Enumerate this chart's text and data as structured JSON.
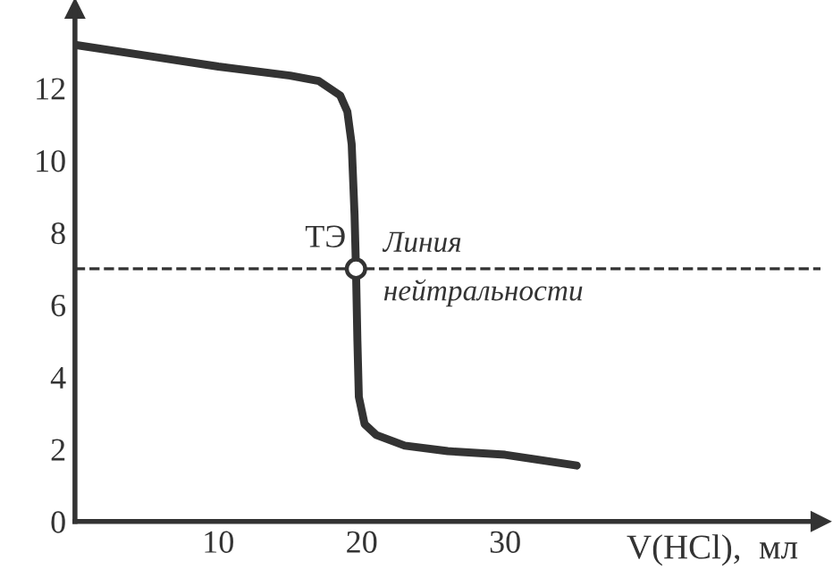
{
  "chart_data": {
    "type": "line",
    "xlabel": "V(HCl),  мл",
    "xlim": [
      0,
      52
    ],
    "ylim": [
      0,
      14.2
    ],
    "xticks": [
      10,
      20,
      30
    ],
    "yticks": [
      0,
      2,
      4,
      6,
      8,
      10,
      12
    ],
    "series": [
      {
        "color": "#333333",
        "x": [
          0,
          5,
          10,
          15,
          17,
          18.5,
          19,
          19.3,
          19.5,
          19.6,
          19.7,
          19.8,
          20.2,
          21,
          23,
          26,
          30,
          35
        ],
        "values": [
          13.2,
          12.9,
          12.6,
          12.35,
          12.2,
          11.8,
          11.35,
          10.45,
          8.5,
          7,
          5,
          3.45,
          2.7,
          2.4,
          2.1,
          1.95,
          1.85,
          1.55
        ],
        "marker": "none",
        "line_style": "solid"
      },
      {
        "type": "scatter",
        "color": "#333333",
        "x": [
          19.6
        ],
        "values": [
          7
        ],
        "marker": "circle"
      }
    ],
    "ref_lines": [
      {
        "axis": "y",
        "value": 7,
        "label": "Линия\nнейтральности",
        "line_style": "dashed",
        "color": "#333333"
      }
    ],
    "annotations": [
      {
        "text": "ТЭ",
        "x": 19.6,
        "y": 7
      }
    ],
    "grid": false,
    "legend": false
  }
}
